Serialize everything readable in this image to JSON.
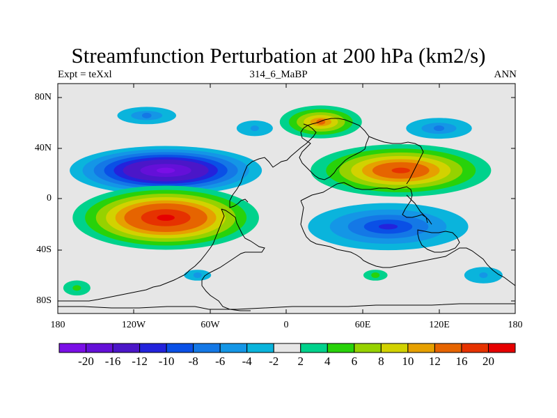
{
  "map": {
    "title": "Streamfunction Perturbation at 200 hPa (km2/s)",
    "subtitle_left": "Expt = teXxl",
    "subtitle_center": "314_6_MaBP",
    "subtitle_right": "ANN",
    "lat_labels": [
      "80N",
      "40N",
      "0",
      "40S",
      "80S"
    ],
    "lon_labels": [
      "180",
      "120W",
      "60W",
      "0",
      "60E",
      "120E",
      "180"
    ],
    "colorbar": {
      "labels": [
        "-20",
        "-16",
        "-12",
        "-10",
        "-8",
        "-6",
        "-4",
        "-2",
        "2",
        "4",
        "6",
        "8",
        "10",
        "12",
        "16",
        "20"
      ],
      "colors": [
        "#7a0fe6",
        "#6410d8",
        "#4b16c8",
        "#2323dc",
        "#0a50e6",
        "#1478e6",
        "#1496e6",
        "#0ab4dc",
        "#e6e6e6",
        "#00d28c",
        "#28d20a",
        "#96d200",
        "#d2d200",
        "#e6a000",
        "#e66400",
        "#e63200",
        "#e60000"
      ]
    },
    "contour_fields": [
      {
        "sign": "negative",
        "peak": -20,
        "lon": -95,
        "lat": 22
      },
      {
        "sign": "negative",
        "peak": -10,
        "lon": 80,
        "lat": -22
      },
      {
        "sign": "negative",
        "peak": -6,
        "lon": -110,
        "lat": 65
      },
      {
        "sign": "negative",
        "peak": -6,
        "lon": 120,
        "lat": 55
      },
      {
        "sign": "negative",
        "peak": -4,
        "lon": -25,
        "lat": 55
      },
      {
        "sign": "negative",
        "peak": -4,
        "lon": -70,
        "lat": -60
      },
      {
        "sign": "negative",
        "peak": -4,
        "lon": 155,
        "lat": -60
      },
      {
        "sign": "positive",
        "peak": 20,
        "lon": -95,
        "lat": -15
      },
      {
        "sign": "positive",
        "peak": 16,
        "lon": 90,
        "lat": 22
      },
      {
        "sign": "positive",
        "peak": 12,
        "lon": 27,
        "lat": 60
      },
      {
        "sign": "positive",
        "peak": 4,
        "lon": -165,
        "lat": -70
      },
      {
        "sign": "positive",
        "peak": 4,
        "lon": 70,
        "lat": -60
      }
    ]
  }
}
